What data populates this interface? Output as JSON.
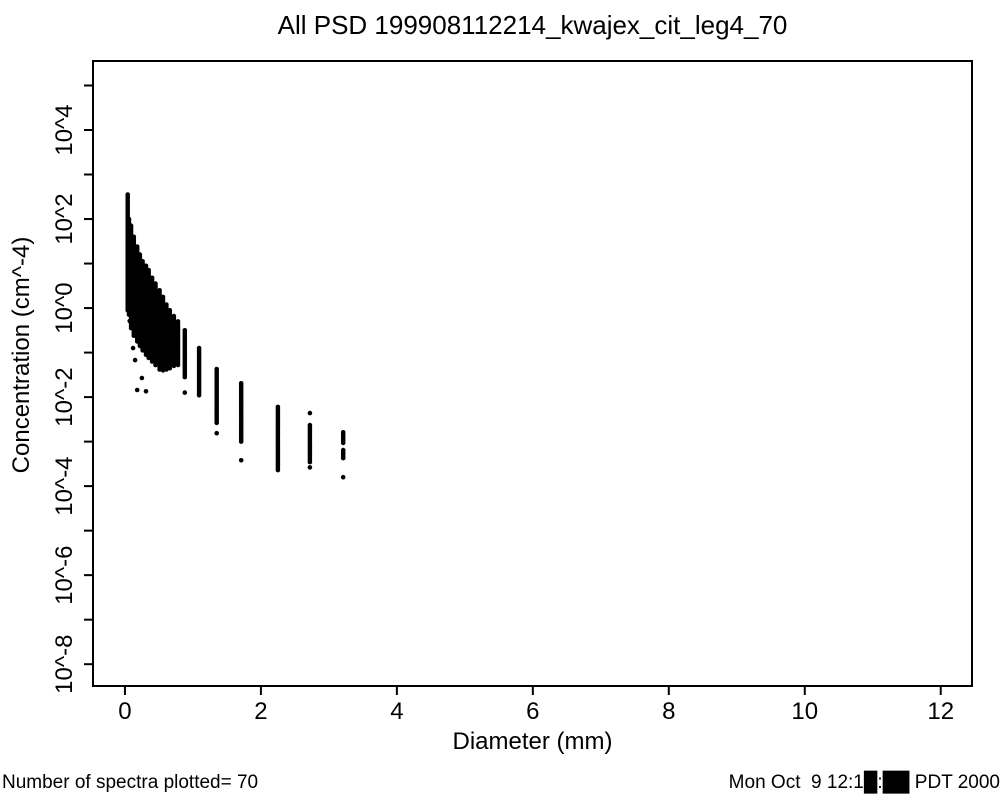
{
  "page": {
    "background_color": "#ffffff",
    "foreground_color": "#000000"
  },
  "footer": {
    "left_note": "Number of spectra plotted= 70",
    "right_timestamp": "Mon Oct  9 12:1█:██ PDT 2000"
  },
  "chart_data": {
    "type": "scatter",
    "title": "All PSD 199908112214_kwajex_cit_leg4_70",
    "xlabel": "Diameter (mm)",
    "ylabel": "Concentration (cm^-4)",
    "grid": false,
    "legend": "none",
    "marker_color": "#000000",
    "marker_radius_px": 2.3,
    "xlim": [
      -0.47,
      12.46
    ],
    "ylim_log10": [
      -8.49,
      5.55
    ],
    "x_ticks": [
      0,
      2,
      4,
      6,
      8,
      10,
      12
    ],
    "y_ticks": [
      {
        "exp": 5,
        "label": ""
      },
      {
        "exp": 4,
        "label": "10^4"
      },
      {
        "exp": 3,
        "label": ""
      },
      {
        "exp": 2,
        "label": "10^2"
      },
      {
        "exp": 1,
        "label": ""
      },
      {
        "exp": 0,
        "label": "10^0"
      },
      {
        "exp": -1,
        "label": ""
      },
      {
        "exp": -2,
        "label": "10^-2"
      },
      {
        "exp": -3,
        "label": ""
      },
      {
        "exp": -4,
        "label": "10^-4"
      },
      {
        "exp": -5,
        "label": ""
      },
      {
        "exp": -6,
        "label": "10^-6"
      },
      {
        "exp": -7,
        "label": ""
      },
      {
        "exp": -8,
        "label": "10^-8"
      }
    ],
    "y_axis_scale": "log10",
    "series_note": "columns = vertical streaks of overplotted spectra points; d = diameter (mm); segs = [log10 concentration top, log10 concentration bottom]",
    "columns": [
      {
        "d": 0.04,
        "segs": [
          [
            2.55,
            -0.05
          ]
        ]
      },
      {
        "d": 0.06,
        "segs": [
          [
            2.0,
            -0.15
          ]
        ]
      },
      {
        "d": 0.09,
        "segs": [
          [
            1.85,
            -0.45
          ]
        ]
      },
      {
        "d": 0.13,
        "segs": [
          [
            1.6,
            -0.62
          ]
        ]
      },
      {
        "d": 0.18,
        "segs": [
          [
            1.38,
            -0.75
          ]
        ]
      },
      {
        "d": 0.22,
        "segs": [
          [
            1.2,
            -0.85
          ]
        ]
      },
      {
        "d": 0.26,
        "segs": [
          [
            1.05,
            -0.95
          ]
        ]
      },
      {
        "d": 0.31,
        "segs": [
          [
            0.95,
            -1.05
          ]
        ]
      },
      {
        "d": 0.35,
        "segs": [
          [
            0.85,
            -1.12
          ]
        ]
      },
      {
        "d": 0.4,
        "segs": [
          [
            0.68,
            -1.2
          ]
        ]
      },
      {
        "d": 0.45,
        "segs": [
          [
            0.55,
            -1.28
          ]
        ]
      },
      {
        "d": 0.51,
        "segs": [
          [
            0.4,
            -1.38
          ]
        ]
      },
      {
        "d": 0.56,
        "segs": [
          [
            0.25,
            -1.4
          ]
        ]
      },
      {
        "d": 0.61,
        "segs": [
          [
            0.08,
            -1.38
          ]
        ]
      },
      {
        "d": 0.66,
        "segs": [
          [
            -0.05,
            -1.35
          ]
        ]
      },
      {
        "d": 0.72,
        "segs": [
          [
            -0.18,
            -1.3
          ]
        ]
      },
      {
        "d": 0.78,
        "segs": [
          [
            -0.3,
            -1.28
          ]
        ]
      },
      {
        "d": 0.88,
        "segs": [
          [
            -0.5,
            -1.55
          ],
          [
            -1.9,
            -1.9
          ]
        ]
      },
      {
        "d": 1.09,
        "segs": [
          [
            -0.9,
            -1.96
          ]
        ]
      },
      {
        "d": 1.35,
        "segs": [
          [
            -1.37,
            -2.58
          ],
          [
            -2.81,
            -2.81
          ]
        ]
      },
      {
        "d": 1.71,
        "segs": [
          [
            -1.69,
            -3.0
          ],
          [
            -3.42,
            -3.42
          ]
        ]
      },
      {
        "d": 2.25,
        "segs": [
          [
            -2.22,
            -3.64
          ]
        ]
      },
      {
        "d": 2.72,
        "segs": [
          [
            -2.36,
            -2.36
          ],
          [
            -2.63,
            -3.46
          ],
          [
            -3.58,
            -3.58
          ]
        ]
      },
      {
        "d": 3.21,
        "segs": [
          [
            -2.79,
            -3.03
          ],
          [
            -3.19,
            -3.37
          ],
          [
            -3.8,
            -3.8
          ]
        ]
      }
    ],
    "outlier_points": [
      [
        0.07,
        -0.29
      ],
      [
        0.12,
        -0.9
      ],
      [
        0.15,
        -1.17
      ],
      [
        0.25,
        -1.57
      ],
      [
        0.18,
        -1.84
      ],
      [
        0.31,
        -1.87
      ]
    ]
  }
}
